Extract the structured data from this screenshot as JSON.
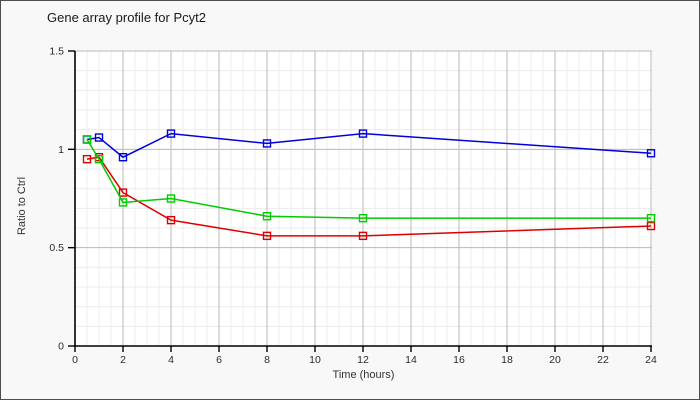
{
  "page": {
    "background": "#f8f8f8",
    "border_color": "#4d4d4d"
  },
  "chart_data": {
    "type": "line",
    "title": "Gene array profile for Pcyt2",
    "xlabel": "Time (hours)",
    "ylabel": "Ratio to Ctrl",
    "xlim": [
      0,
      24
    ],
    "ylim": [
      0,
      1.5
    ],
    "x_ticks": [
      0,
      2,
      4,
      6,
      8,
      10,
      12,
      14,
      16,
      18,
      20,
      22,
      24
    ],
    "y_ticks": [
      0,
      0.5,
      1,
      1.5
    ],
    "y_tick_labels": [
      "0",
      "0.5",
      "1",
      "1.5"
    ],
    "x_minor_step": 0.5,
    "y_minor_step": 0.1,
    "grid": true,
    "legend": false,
    "marker": "open-square",
    "plot_bg": "#ffffff",
    "axis_color": "#000000",
    "grid_major_color": "#b8b8b8",
    "grid_minor_color": "#ececec",
    "tick_label_color": "#2a2a2a",
    "x": [
      0.5,
      1,
      2,
      4,
      8,
      12,
      24
    ],
    "series": [
      {
        "name": "blue",
        "color": "#0000dd",
        "values": [
          1.05,
          1.06,
          0.96,
          1.08,
          1.03,
          1.08,
          0.98
        ]
      },
      {
        "name": "red",
        "color": "#dd0000",
        "values": [
          0.95,
          0.96,
          0.78,
          0.64,
          0.56,
          0.56,
          0.61
        ]
      },
      {
        "name": "green",
        "color": "#00cc00",
        "values": [
          1.05,
          0.95,
          0.73,
          0.75,
          0.66,
          0.65,
          0.65
        ]
      }
    ]
  }
}
